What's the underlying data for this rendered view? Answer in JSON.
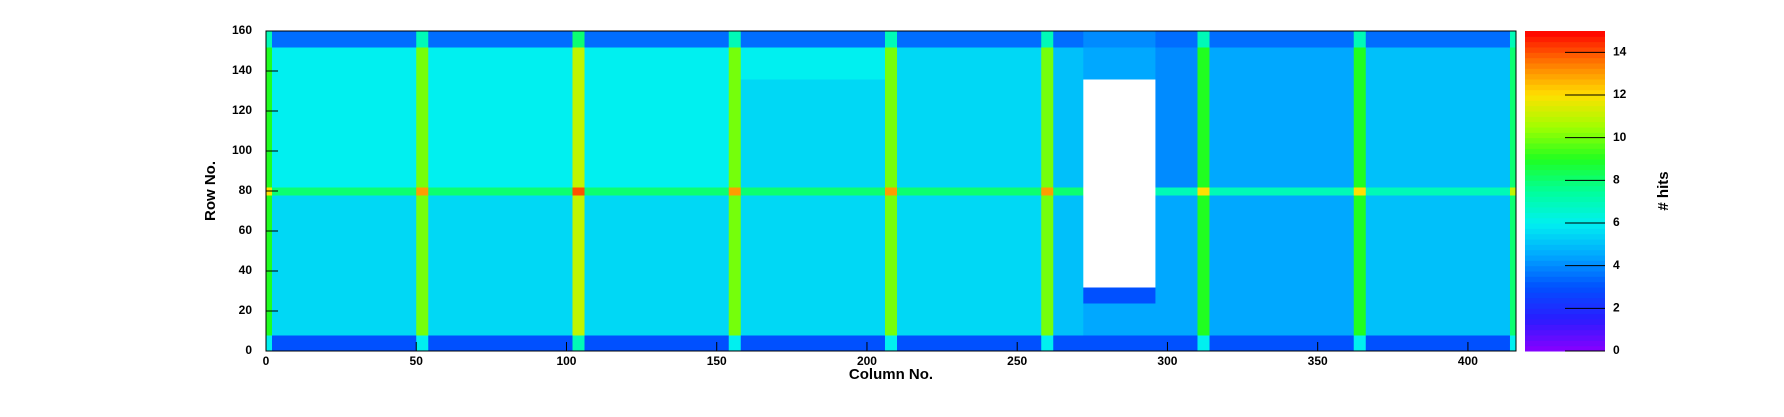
{
  "chart_data": {
    "type": "heatmap",
    "x_label": "Column No.",
    "y_label": "Row No.",
    "z_label": "# hits",
    "xbins": [
      0,
      2,
      50,
      54,
      102,
      106,
      154,
      158,
      206,
      210,
      258,
      262,
      272,
      296,
      310,
      314,
      362,
      366,
      414,
      416
    ],
    "ybins": [
      0,
      8,
      24,
      32,
      78,
      82,
      136,
      152,
      160
    ],
    "z": [
      [
        6,
        3,
        6,
        3,
        7,
        3,
        6,
        3,
        6,
        3,
        6,
        3,
        3,
        3,
        6,
        3,
        6,
        3,
        6
      ],
      [
        9,
        5.5,
        10,
        5.5,
        11,
        5.5,
        10,
        5.5,
        10,
        5.5,
        10,
        5,
        4.5,
        4.5,
        9,
        4.5,
        9,
        5,
        8
      ],
      [
        9,
        5.5,
        10,
        5.5,
        11,
        5.5,
        10,
        5.5,
        10,
        5.5,
        10,
        5,
        3,
        4.5,
        9,
        4.5,
        9,
        5,
        8
      ],
      [
        9,
        5.5,
        10,
        5.5,
        11,
        5.5,
        10,
        5.5,
        10,
        5.5,
        10,
        5,
        0,
        4.5,
        9,
        4.5,
        9,
        5,
        8
      ],
      [
        12,
        8,
        13,
        8,
        14,
        8,
        13,
        8,
        13,
        8,
        13,
        8,
        0,
        7,
        12,
        7,
        12,
        7,
        11
      ],
      [
        9,
        6,
        10,
        6,
        11,
        6,
        10,
        5.5,
        10,
        5.5,
        10,
        5,
        0,
        4,
        9,
        4.5,
        9,
        5,
        8
      ],
      [
        9,
        6,
        10,
        6,
        11,
        6,
        10,
        6,
        10,
        5.5,
        10,
        5,
        4.5,
        4,
        9,
        4.5,
        9,
        5,
        8
      ],
      [
        7,
        3.5,
        7,
        3.5,
        8,
        3.5,
        7,
        3.5,
        7,
        3.5,
        7,
        3.5,
        4,
        3.5,
        7,
        3.5,
        7,
        3.5,
        7
      ]
    ],
    "xlim": [
      0,
      416
    ],
    "ylim": [
      0,
      160
    ],
    "zlim": [
      0,
      15
    ],
    "xticks": [
      0,
      50,
      100,
      150,
      200,
      250,
      300,
      350,
      400
    ],
    "yticks": [
      0,
      20,
      40,
      60,
      80,
      100,
      120,
      140,
      160
    ],
    "zticks": [
      0,
      2,
      4,
      6,
      8,
      10,
      12,
      14
    ],
    "palette": [
      "#8a00ff",
      "#2a1cff",
      "#0050ff",
      "#00a8ff",
      "#00f0f0",
      "#00ff9a",
      "#20ff20",
      "#a0ff00",
      "#ffe000",
      "#ff7a00",
      "#ff0000"
    ],
    "empty_color": "#ffffff"
  }
}
